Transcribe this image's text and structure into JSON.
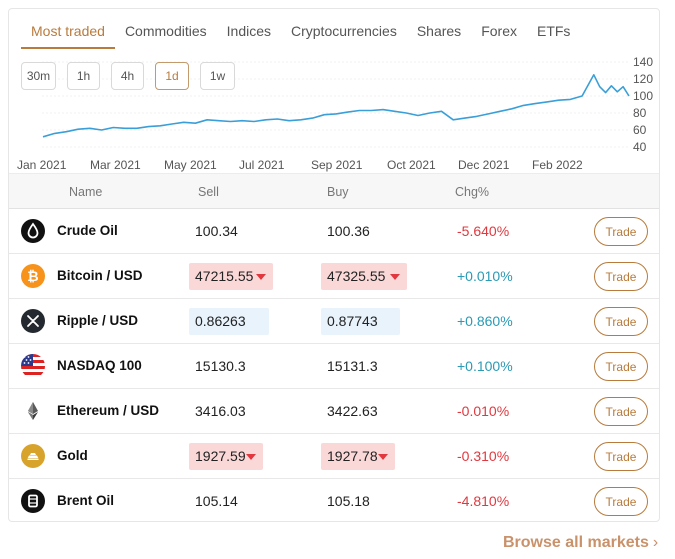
{
  "tabs": [
    {
      "label": "Most traded",
      "active": true
    },
    {
      "label": "Commodities",
      "active": false
    },
    {
      "label": "Indices",
      "active": false
    },
    {
      "label": "Cryptocurrencies",
      "active": false
    },
    {
      "label": "Shares",
      "active": false
    },
    {
      "label": "Forex",
      "active": false
    },
    {
      "label": "ETFs",
      "active": false
    }
  ],
  "timeframes": [
    {
      "label": "30m",
      "active": false
    },
    {
      "label": "1h",
      "active": false
    },
    {
      "label": "4h",
      "active": false
    },
    {
      "label": "1d",
      "active": true
    },
    {
      "label": "1w",
      "active": false
    }
  ],
  "chart_data": {
    "type": "line",
    "xlabel": "",
    "ylabel": "",
    "x_ticks": [
      "Jan 2021",
      "Mar 2021",
      "May 2021",
      "Jul 2021",
      "Sep 2021",
      "Oct 2021",
      "Dec 2021",
      "Feb 2022"
    ],
    "y_ticks": [
      40,
      60,
      80,
      100,
      120,
      140
    ],
    "ylim": [
      40,
      140
    ],
    "grid": "dotted",
    "line_color": "#3a9fd8",
    "x": [
      0,
      0.02,
      0.04,
      0.06,
      0.08,
      0.1,
      0.12,
      0.14,
      0.16,
      0.18,
      0.2,
      0.22,
      0.24,
      0.26,
      0.28,
      0.3,
      0.32,
      0.34,
      0.36,
      0.38,
      0.4,
      0.42,
      0.44,
      0.46,
      0.48,
      0.5,
      0.52,
      0.54,
      0.56,
      0.58,
      0.6,
      0.62,
      0.64,
      0.66,
      0.68,
      0.7,
      0.72,
      0.74,
      0.76,
      0.78,
      0.8,
      0.82,
      0.84,
      0.86,
      0.88,
      0.9,
      0.92,
      0.94,
      0.95,
      0.96,
      0.97,
      0.98,
      0.99,
      1.0
    ],
    "values": [
      52,
      56,
      58,
      61,
      62,
      60,
      63,
      62,
      62,
      64,
      65,
      67,
      69,
      68,
      72,
      71,
      70,
      71,
      70,
      72,
      73,
      71,
      72,
      74,
      78,
      79,
      81,
      83,
      83,
      84,
      82,
      80,
      77,
      80,
      82,
      72,
      74,
      76,
      79,
      82,
      85,
      89,
      91,
      93,
      95,
      96,
      100,
      125,
      111,
      104,
      112,
      105,
      111,
      100
    ]
  },
  "table": {
    "headers": {
      "name": "Name",
      "sell": "Sell",
      "buy": "Buy",
      "chg": "Chg%"
    },
    "trade_label": "Trade",
    "rows": [
      {
        "name": "Crude Oil",
        "icon": "oil-drop-icon",
        "sell": "100.34",
        "buy": "100.36",
        "chg": "-5.640%",
        "direction": "neg",
        "highlight": "none"
      },
      {
        "name": "Bitcoin / USD",
        "icon": "bitcoin-icon",
        "sell": "47215.55",
        "buy": "47325.55",
        "chg": "+0.010%",
        "direction": "pos",
        "highlight": "red"
      },
      {
        "name": "Ripple / USD",
        "icon": "ripple-icon",
        "sell": "0.86263",
        "buy": "0.87743",
        "chg": "+0.860%",
        "direction": "pos",
        "highlight": "blue"
      },
      {
        "name": "NASDAQ 100",
        "icon": "us-flag-icon",
        "sell": "15130.3",
        "buy": "15131.3",
        "chg": "+0.100%",
        "direction": "pos",
        "highlight": "none"
      },
      {
        "name": "Ethereum / USD",
        "icon": "ethereum-icon",
        "sell": "3416.03",
        "buy": "3422.63",
        "chg": "-0.010%",
        "direction": "neg",
        "highlight": "none"
      },
      {
        "name": "Gold",
        "icon": "gold-bar-icon",
        "sell": "1927.59",
        "buy": "1927.78",
        "chg": "-0.310%",
        "direction": "neg",
        "highlight": "red"
      },
      {
        "name": "Brent Oil",
        "icon": "barrel-icon",
        "sell": "105.14",
        "buy": "105.18",
        "chg": "-4.810%",
        "direction": "neg",
        "highlight": "none"
      }
    ]
  },
  "footer": {
    "browse_label": "Browse all markets",
    "chevron": "›"
  },
  "colors": {
    "accent": "#b87b3c",
    "negative": "#e0383e",
    "positive": "#2a9ab5",
    "line": "#3a9fd8"
  }
}
